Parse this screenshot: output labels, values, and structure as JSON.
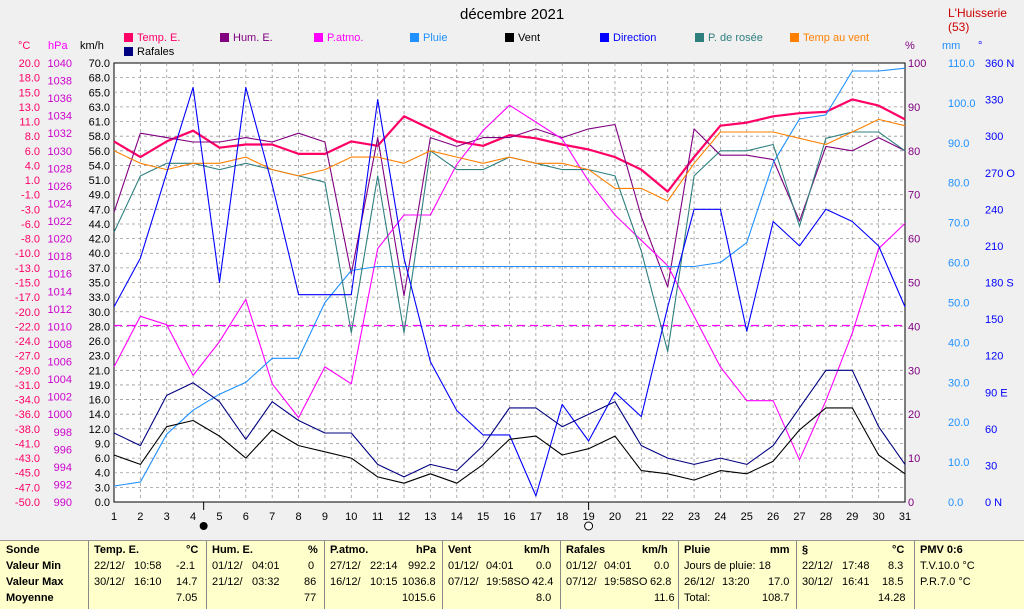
{
  "title": "décembre 2021",
  "station": "L'Huisserie (53)",
  "legend": [
    {
      "label": "Temp. E.",
      "color": "#ff0066"
    },
    {
      "label": "Hum. E.",
      "color": "#800080"
    },
    {
      "label": "P.atmo.",
      "color": "#ff00ff"
    },
    {
      "label": "Pluie",
      "color": "#1e90ff"
    },
    {
      "label": "Vent",
      "color": "#000000"
    },
    {
      "label": "Direction",
      "color": "#0000ff"
    },
    {
      "label": "P. de rosée",
      "color": "#2f7f7f"
    },
    {
      "label": "Temp au vent",
      "color": "#ff8000"
    },
    {
      "label": "Rafales",
      "color": "#000080"
    }
  ],
  "axes_headers": {
    "temp": "°C",
    "press": "hPa",
    "wind": "km/h",
    "hum": "%",
    "rain": "mm",
    "dir": "°"
  },
  "chart_data": {
    "type": "line",
    "title": "décembre 2021",
    "x": [
      1,
      2,
      3,
      4,
      5,
      6,
      7,
      8,
      9,
      10,
      11,
      12,
      13,
      14,
      15,
      16,
      17,
      18,
      19,
      20,
      21,
      22,
      23,
      24,
      25,
      26,
      27,
      28,
      29,
      30,
      31
    ],
    "xlim": [
      1,
      31
    ],
    "grid": true,
    "legend_position": "top",
    "axes": {
      "temp": {
        "label": "°C",
        "range": [
          -50,
          20
        ],
        "ticks": [
          "20.0",
          "18.0",
          "15.0",
          "13.0",
          "11.0",
          "8.0",
          "6.0",
          "4.0",
          "1.0",
          "-1.0",
          "-3.0",
          "-6.0",
          "-8.0",
          "-10.0",
          "-13.0",
          "-15.0",
          "-17.0",
          "-20.0",
          "-22.0",
          "-24.0",
          "-27.0",
          "-29.0",
          "-31.0",
          "-34.0",
          "-36.0",
          "-38.0",
          "-41.0",
          "-43.0",
          "-45.0",
          "-47.0",
          "-50.0"
        ]
      },
      "press": {
        "label": "hPa",
        "range": [
          990,
          1042
        ],
        "ticks": [
          "1040",
          "1038",
          "1036",
          "1034",
          "1032",
          "1030",
          "1028",
          "1026",
          "1024",
          "1022",
          "1020",
          "1018",
          "1016",
          "1014",
          "1012",
          "1010",
          "1008",
          "1006",
          "1004",
          "1002",
          "1000",
          "998",
          "996",
          "994",
          "992",
          "990"
        ]
      },
      "wind": {
        "label": "km/h",
        "range": [
          0,
          70
        ],
        "ticks": [
          "70.0",
          "68.0",
          "65.0",
          "63.0",
          "61.0",
          "58.0",
          "56.0",
          "54.0",
          "51.0",
          "49.0",
          "47.0",
          "44.0",
          "42.0",
          "40.0",
          "37.0",
          "35.0",
          "33.0",
          "30.0",
          "28.0",
          "26.0",
          "23.0",
          "21.0",
          "19.0",
          "16.0",
          "14.0",
          "12.0",
          "9.0",
          "6.0",
          "4.0",
          "3.0",
          "0.0"
        ]
      },
      "hum": {
        "label": "%",
        "range": [
          0,
          100
        ],
        "ticks": [
          "100",
          "90",
          "80",
          "70",
          "60",
          "50",
          "40",
          "30",
          "20",
          "10",
          "0"
        ]
      },
      "rain": {
        "label": "mm",
        "range": [
          0,
          110
        ],
        "ticks": [
          "110.0",
          "100.0",
          "90.0",
          "80.0",
          "70.0",
          "60.0",
          "50.0",
          "40.0",
          "30.0",
          "20.0",
          "10.0",
          "0.0"
        ]
      },
      "dir": {
        "label": "°",
        "range": [
          0,
          360
        ],
        "ticks": [
          "360 N",
          "330",
          "300",
          "270 O",
          "240",
          "210",
          "180 S",
          "150",
          "120",
          "90 E",
          "60",
          "30",
          "0 N"
        ]
      }
    },
    "series": [
      {
        "name": "Temp. E.",
        "axis": "temp",
        "color": "#ff0066",
        "width": 2.2,
        "values": [
          7.5,
          5.0,
          7.5,
          9.2,
          6.5,
          7.0,
          7.0,
          5.5,
          5.5,
          7.5,
          6.8,
          11.5,
          9.5,
          7.5,
          6.8,
          8.5,
          8.0,
          7.0,
          6.2,
          5.0,
          3.0,
          -0.5,
          5.0,
          10.0,
          10.5,
          11.5,
          12.0,
          12.2,
          14.2,
          13.2,
          11.0
        ]
      },
      {
        "name": "Hum. E.",
        "axis": "hum",
        "color": "#800080",
        "values": [
          66,
          84,
          83,
          82,
          82,
          83,
          82,
          84,
          82,
          52,
          83,
          47,
          83,
          81,
          83,
          83,
          85,
          83,
          85,
          86,
          65,
          49,
          85,
          79,
          79,
          78,
          64,
          81,
          80,
          83,
          80
        ]
      },
      {
        "name": "P.atmo.",
        "axis": "press",
        "color": "#ff00ff",
        "values": [
          1006,
          1012,
          1011,
          1005,
          1009,
          1014,
          1004,
          1000,
          1006,
          1004,
          1020,
          1024,
          1024,
          1030,
          1034,
          1037,
          1035,
          1033,
          1028,
          1024,
          1021,
          1018,
          1012,
          1006,
          1002,
          1002,
          995,
          1002,
          1010,
          1020,
          1023
        ]
      },
      {
        "name": "Pluie",
        "axis": "rain",
        "color": "#1e90ff",
        "values": [
          4,
          5,
          17,
          23,
          27,
          30,
          36,
          36,
          50,
          58,
          59,
          59,
          59,
          59,
          59,
          59,
          59,
          59,
          59,
          59,
          59,
          59,
          59,
          60,
          65,
          85,
          96,
          97,
          108,
          108,
          108.7
        ]
      },
      {
        "name": "P. de rosée",
        "axis": "temp",
        "color": "#2f7f7f",
        "values": [
          -7,
          2,
          4,
          4,
          3,
          4,
          3,
          2,
          1,
          -23,
          2,
          -23,
          6,
          3,
          3,
          5,
          4,
          3,
          3,
          2,
          -10,
          -26,
          2,
          6,
          6,
          7,
          -6,
          8,
          9,
          9,
          6
        ]
      },
      {
        "name": "Temp au vent",
        "axis": "temp",
        "color": "#ff8000",
        "values": [
          6,
          4,
          3,
          4,
          4,
          5,
          3,
          2,
          3,
          5,
          5,
          4,
          6,
          5,
          4,
          5,
          4,
          4,
          3,
          0,
          0,
          -2,
          4,
          9,
          9,
          9,
          8,
          7,
          9,
          11,
          10
        ]
      },
      {
        "name": "Direction",
        "axis": "dir",
        "color": "#0000ff",
        "values": [
          160,
          200,
          270,
          340,
          180,
          340,
          260,
          170,
          170,
          170,
          330,
          200,
          115,
          75,
          55,
          55,
          5,
          80,
          50,
          90,
          70,
          160,
          240,
          240,
          140,
          230,
          210,
          240,
          230,
          210,
          160
        ]
      },
      {
        "name": "Rafales",
        "axis": "wind",
        "color": "#000080",
        "values": [
          11,
          9,
          17,
          19,
          16,
          10,
          16,
          13,
          11,
          11,
          6,
          4,
          6,
          5,
          9,
          15,
          15,
          12,
          14,
          16,
          9,
          7,
          6,
          7,
          6,
          9,
          15,
          21,
          21,
          12,
          6
        ]
      },
      {
        "name": "Vent",
        "axis": "wind",
        "color": "#000000",
        "values": [
          7.5,
          6,
          12,
          13,
          10.5,
          7,
          11.5,
          9,
          8,
          7,
          4,
          3,
          4.5,
          3,
          6,
          10,
          10.5,
          7.5,
          8.5,
          10.5,
          5,
          4.5,
          3.5,
          5,
          4.5,
          6.5,
          11.5,
          15,
          15,
          7.5,
          4.5
        ]
      }
    ]
  },
  "summary": {
    "rows": [
      "Sonde",
      "Valeur Min",
      "Valeur Max",
      "Moyenne"
    ],
    "temp": {
      "title": "Temp. E.",
      "unit": "°C",
      "min_date": "22/12/",
      "min_time": "10:58",
      "min_val": "-2.1",
      "max_date": "30/12/",
      "max_time": "16:10",
      "max_val": "14.7",
      "avg": "7.05"
    },
    "hum": {
      "title": "Hum. E.",
      "unit": "%",
      "min_date": "01/12/",
      "min_time": "04:01",
      "min_val": "0",
      "max_date": "21/12/",
      "max_time": "03:32",
      "max_val": "86",
      "avg": "77"
    },
    "press": {
      "title": "P.atmo.",
      "unit": "hPa",
      "min_date": "27/12/",
      "min_time": "22:14",
      "min_val": "992.2",
      "max_date": "16/12/",
      "max_time": "10:15",
      "max_val": "1036.8",
      "avg": "1015.6"
    },
    "wind": {
      "title": "Vent",
      "unit": "km/h",
      "min_date": "01/12/",
      "min_time": "04:01",
      "min_val": "0.0",
      "max_date": "07/12/",
      "max_time": "19:58SO",
      "max_val": "42.4",
      "avg": "8.0"
    },
    "gust": {
      "title": "Rafales",
      "unit": "km/h",
      "min_date": "01/12/",
      "min_time": "04:01",
      "min_val": "0.0",
      "max_date": "07/12/",
      "max_time": "19:58SO",
      "max_val": "62.8",
      "avg": "11.6"
    },
    "rain": {
      "title": "Pluie",
      "unit": "mm",
      "line1": "Jours de pluie: 18",
      "line2_date": "26/12/",
      "line2_time": "13:20",
      "line2_val": "17.0",
      "line3_label": "Total:",
      "line3_val": "108.7"
    },
    "dew": {
      "title": "§",
      "unit": "°C",
      "min_date": "22/12/",
      "min_time": "17:48",
      "min_val": "8.3",
      "max_date": "30/12/",
      "max_time": "16:41",
      "max_val": "18.5",
      "avg": "14.28"
    },
    "pmv": {
      "title": "PMV 0:6",
      "line1": "T.V.10.0 °C",
      "line2": "P.R.7.0 °C"
    }
  }
}
